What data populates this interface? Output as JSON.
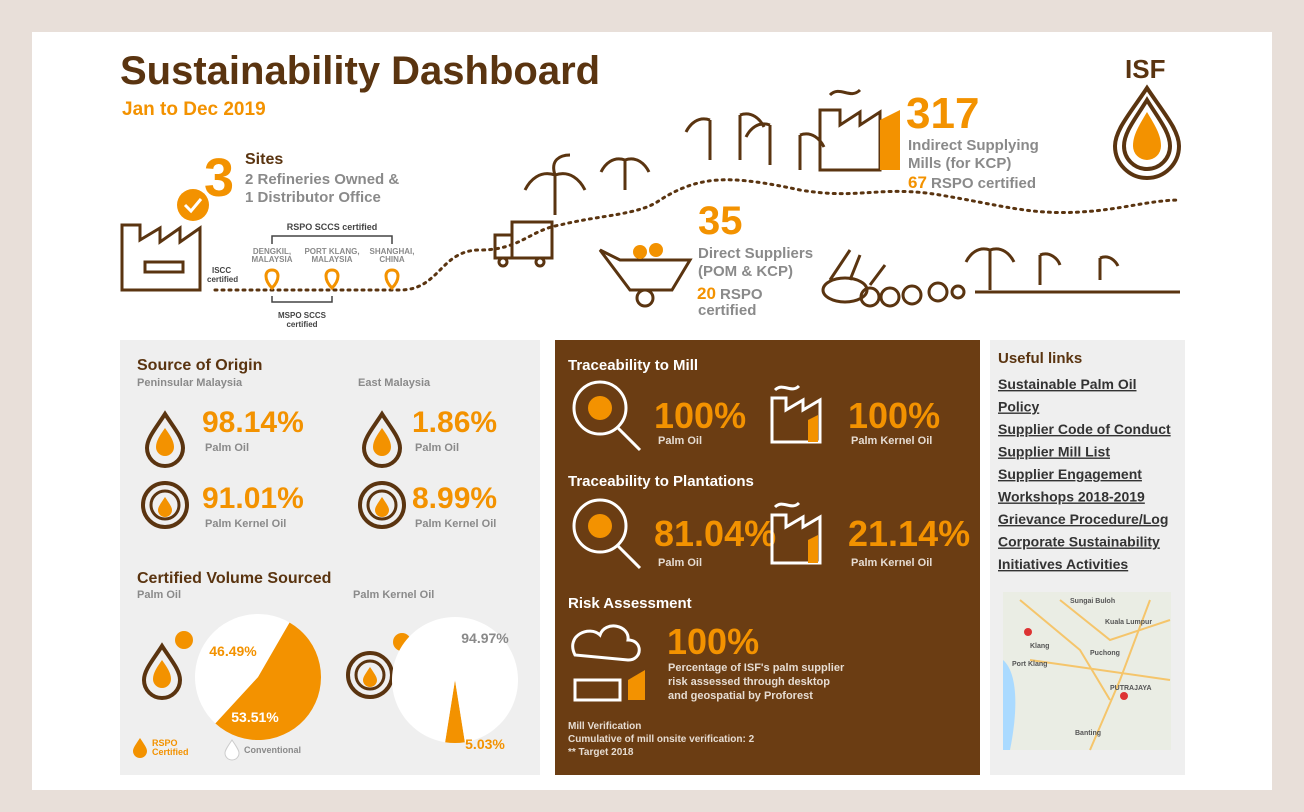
{
  "header": {
    "title": "Sustainability Dashboard",
    "subtitle": "Jan to Dec 2019",
    "logo": "ISF"
  },
  "sites": {
    "count": "3",
    "heading": "Sites",
    "lines": [
      "2 Refineries Owned &",
      "1 Distributor Office"
    ],
    "rspo_label": "RSPO SCCS certified",
    "iscc_label": [
      "ISCC",
      "certified"
    ],
    "mspo_label": [
      "MSPO SCCS",
      "certified"
    ],
    "locations": [
      [
        "DENGKIL,",
        "MALAYSIA"
      ],
      [
        "PORT KLANG,",
        "MALAYSIA"
      ],
      [
        "SHANGHAI,",
        "CHINA"
      ]
    ]
  },
  "direct": {
    "count": "35",
    "lines": [
      "Direct Suppliers",
      "(POM & KCP)"
    ],
    "certified_count": "20",
    "certified_label": "RSPO",
    "certified_label2": "certified"
  },
  "indirect": {
    "count": "317",
    "lines": [
      "Indirect Supplying",
      "Mills (for KCP)"
    ],
    "certified_count": "67",
    "certified_label": "RSPO certified"
  },
  "source_of_origin": {
    "title": "Source of Origin",
    "regions": [
      {
        "name": "Peninsular Malaysia",
        "items": [
          {
            "value": "98.14%",
            "label": "Palm Oil"
          },
          {
            "value": "91.01%",
            "label": "Palm Kernel Oil"
          }
        ]
      },
      {
        "name": "East Malaysia",
        "items": [
          {
            "value": "1.86%",
            "label": "Palm Oil"
          },
          {
            "value": "8.99%",
            "label": "Palm Kernel Oil"
          }
        ]
      }
    ]
  },
  "certified_volume": {
    "title": "Certified Volume Sourced",
    "charts": [
      {
        "name": "Palm Oil",
        "values": [
          53.51,
          46.49
        ],
        "value_labels": [
          "53.51%",
          "46.49%"
        ]
      },
      {
        "name": "Palm Kernel Oil",
        "values": [
          5.03,
          94.97
        ],
        "value_labels": [
          "5.03%",
          "94.97%"
        ]
      }
    ],
    "legend": [
      [
        "RSPO",
        "Certified"
      ],
      [
        "Conventional"
      ]
    ]
  },
  "traceability": {
    "mill": {
      "title": "Traceability to Mill",
      "items": [
        {
          "value": "100%",
          "label": "Palm Oil"
        },
        {
          "value": "100%",
          "label": "Palm Kernel Oil"
        }
      ]
    },
    "plantations": {
      "title": "Traceability to Plantations",
      "items": [
        {
          "value": "81.04%",
          "label": "Palm Oil"
        },
        {
          "value": "21.14%",
          "label": "Palm Kernel Oil"
        }
      ]
    }
  },
  "risk": {
    "title": "Risk Assessment",
    "value": "100%",
    "description": [
      "Percentage of ISF's palm supplier",
      "risk assessed through desktop",
      "and geospatial by Proforest"
    ],
    "notes": [
      "Mill Verification",
      "Cumulative of mill onsite verification: 2",
      "** Target 2018"
    ]
  },
  "links": {
    "title": "Useful links",
    "items": [
      [
        "Sustainable Palm Oil",
        "Policy"
      ],
      [
        "Supplier Code of Conduct"
      ],
      [
        "Supplier Mill List"
      ],
      [
        "Supplier Engagement",
        "Workshops 2018-2019"
      ],
      [
        "Grievance Procedure/Log"
      ],
      [
        "Corporate Sustainability",
        "Initiatives Activities"
      ]
    ],
    "map_labels": [
      "Sungai Buloh",
      "Kuala Lumpur",
      "Klang",
      "Puchong",
      "Port Klang",
      "PUTRAJAYA",
      "Banting"
    ]
  }
}
